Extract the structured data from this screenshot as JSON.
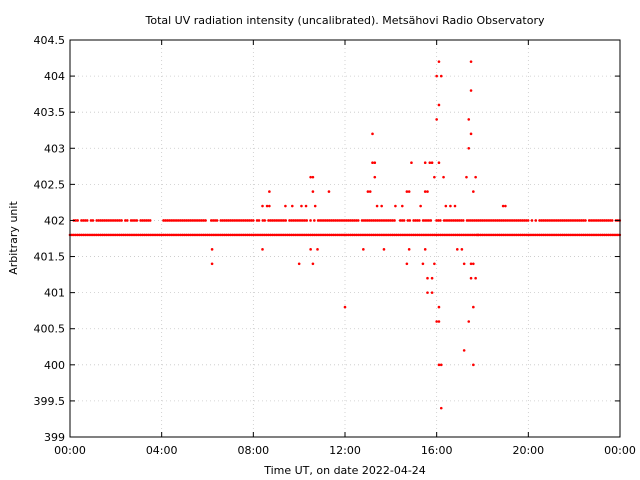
{
  "chart_data": {
    "type": "scatter",
    "title": "Total UV radiation intensity (uncalibrated). Metsähovi Radio Observatory",
    "xlabel": "Time UT, on date 2022-04-24",
    "ylabel": "Arbitrary unit",
    "xlim": [
      0,
      24
    ],
    "ylim": [
      399,
      404.5
    ],
    "x_ticks": [
      0,
      4,
      8,
      12,
      16,
      20,
      24
    ],
    "x_tick_labels": [
      "00:00",
      "04:00",
      "08:00",
      "12:00",
      "16:00",
      "20:00",
      "00:00"
    ],
    "y_ticks": [
      399,
      399.5,
      400,
      400.5,
      401,
      401.5,
      402,
      402.5,
      403,
      403.5,
      404,
      404.5
    ],
    "y_tick_labels": [
      "399",
      "399.5",
      "400",
      "400.5",
      "401",
      "401.5",
      "402",
      "402.5",
      "403",
      "403.5",
      "404",
      "404.5"
    ],
    "grid": true,
    "series": [
      {
        "color": "#ff0000",
        "baseline_levels": [
          401.8,
          402.0
        ],
        "points": [
          [
            6.2,
            401.6
          ],
          [
            6.2,
            401.4
          ],
          [
            8.4,
            402.2
          ],
          [
            8.4,
            401.6
          ],
          [
            8.6,
            402.2
          ],
          [
            8.7,
            402.4
          ],
          [
            8.7,
            402.2
          ],
          [
            9.4,
            402.2
          ],
          [
            9.7,
            402.2
          ],
          [
            10.0,
            401.4
          ],
          [
            10.1,
            402.2
          ],
          [
            10.3,
            402.2
          ],
          [
            10.5,
            402.6
          ],
          [
            10.6,
            402.6
          ],
          [
            10.6,
            402.4
          ],
          [
            10.5,
            401.6
          ],
          [
            10.6,
            401.4
          ],
          [
            10.7,
            402.2
          ],
          [
            10.8,
            401.6
          ],
          [
            11.3,
            402.4
          ],
          [
            12.0,
            400.8
          ],
          [
            12.8,
            401.6
          ],
          [
            13.0,
            402.4
          ],
          [
            13.1,
            402.4
          ],
          [
            13.2,
            402.8
          ],
          [
            13.3,
            402.8
          ],
          [
            13.2,
            403.2
          ],
          [
            13.3,
            402.6
          ],
          [
            13.4,
            402.2
          ],
          [
            13.6,
            402.2
          ],
          [
            13.7,
            401.6
          ],
          [
            14.2,
            402.2
          ],
          [
            14.5,
            402.2
          ],
          [
            14.7,
            402.4
          ],
          [
            14.8,
            402.4
          ],
          [
            14.9,
            402.8
          ],
          [
            14.7,
            401.4
          ],
          [
            14.8,
            401.6
          ],
          [
            15.3,
            402.2
          ],
          [
            15.5,
            402.8
          ],
          [
            15.5,
            402.4
          ],
          [
            15.6,
            402.4
          ],
          [
            15.7,
            402.8
          ],
          [
            15.8,
            402.8
          ],
          [
            15.9,
            402.6
          ],
          [
            15.4,
            401.4
          ],
          [
            15.5,
            401.6
          ],
          [
            15.6,
            401.2
          ],
          [
            15.6,
            401.0
          ],
          [
            15.8,
            401.0
          ],
          [
            15.8,
            401.2
          ],
          [
            15.9,
            401.4
          ],
          [
            16.0,
            403.4
          ],
          [
            16.0,
            404.0
          ],
          [
            16.1,
            404.2
          ],
          [
            16.1,
            403.6
          ],
          [
            16.2,
            404.0
          ],
          [
            16.1,
            402.8
          ],
          [
            16.0,
            400.6
          ],
          [
            16.1,
            400.6
          ],
          [
            16.1,
            400.8
          ],
          [
            16.1,
            400.0
          ],
          [
            16.2,
            400.0
          ],
          [
            16.2,
            399.4
          ],
          [
            16.3,
            402.6
          ],
          [
            16.4,
            402.2
          ],
          [
            16.6,
            402.2
          ],
          [
            16.8,
            402.2
          ],
          [
            16.9,
            401.6
          ],
          [
            17.1,
            401.6
          ],
          [
            17.2,
            401.4
          ],
          [
            17.2,
            400.2
          ],
          [
            17.3,
            402.6
          ],
          [
            17.4,
            403.4
          ],
          [
            17.4,
            403.0
          ],
          [
            17.5,
            404.2
          ],
          [
            17.5,
            403.8
          ],
          [
            17.5,
            403.2
          ],
          [
            17.6,
            402.4
          ],
          [
            17.7,
            402.6
          ],
          [
            17.4,
            400.6
          ],
          [
            17.5,
            401.4
          ],
          [
            17.5,
            401.2
          ],
          [
            17.6,
            400.8
          ],
          [
            17.6,
            401.4
          ],
          [
            17.7,
            401.2
          ],
          [
            17.6,
            400.0
          ],
          [
            17.8,
            401.8
          ],
          [
            18.9,
            402.2
          ],
          [
            19.0,
            402.2
          ]
        ]
      }
    ]
  }
}
